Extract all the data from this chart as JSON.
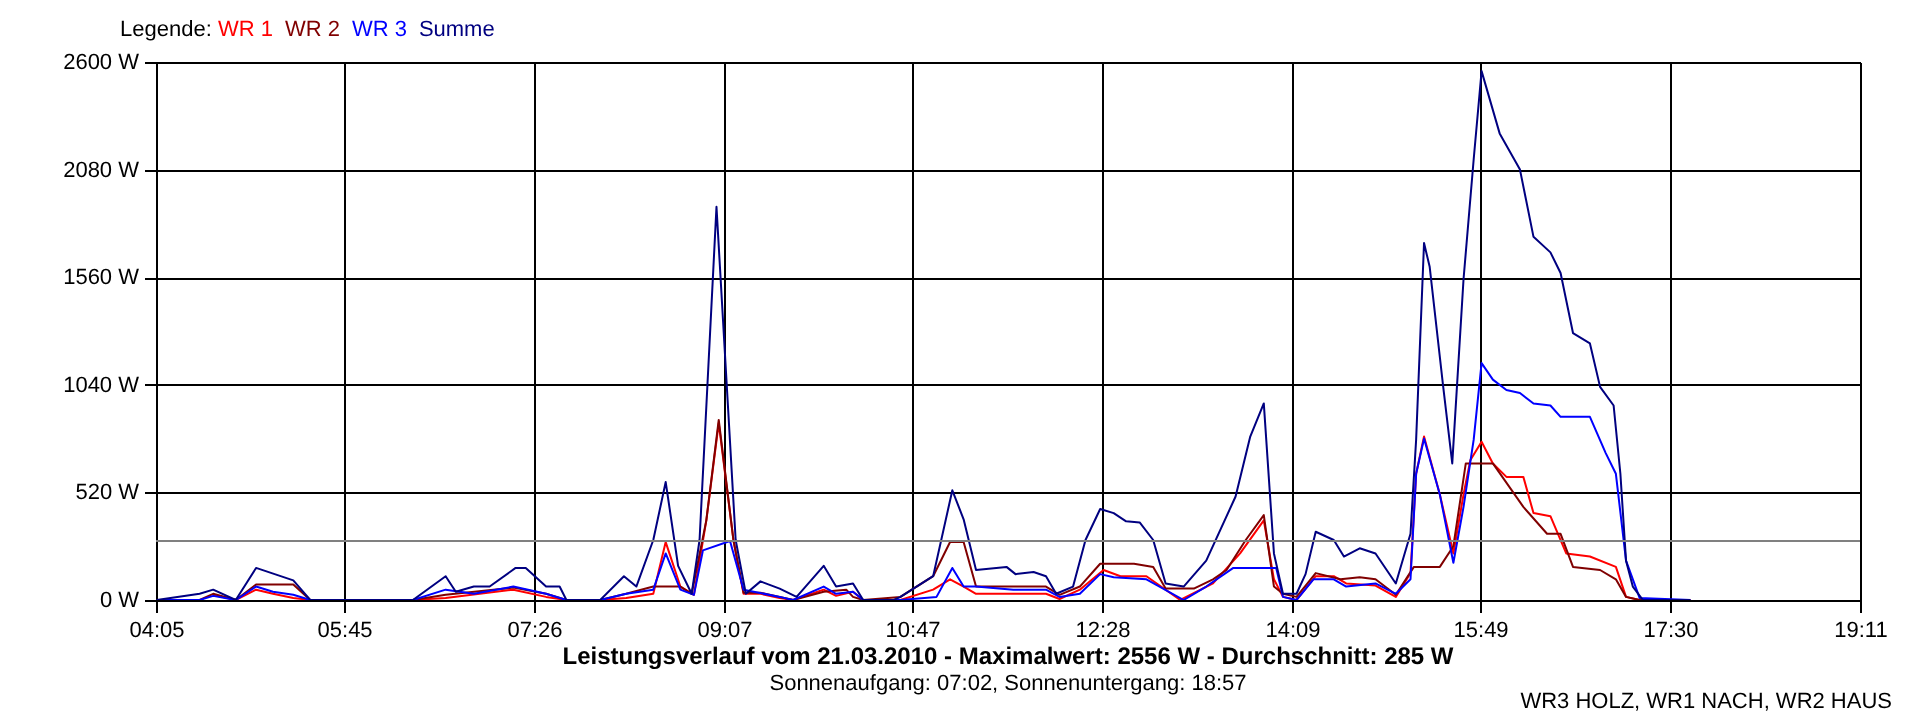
{
  "chart_data": {
    "type": "line",
    "title": "Leistungsverlauf vom 21.03.2010 - Maximalwert: 2556 W - Durchschnitt: 285 W",
    "subtitle": "Sonnenaufgang: 07:02, Sonnenuntergang: 18:57",
    "legend_title": "Legende:",
    "legend": "top left",
    "annotations": [
      "WR3 HOLZ, WR1 NACH, WR2 HAUS"
    ],
    "xlim": [
      4.0833,
      19.1833
    ],
    "xticks": [
      {
        "value": 4.0833,
        "label": "04:05"
      },
      {
        "value": 5.75,
        "label": "05:45"
      },
      {
        "value": 7.4333,
        "label": "07:26"
      },
      {
        "value": 9.1167,
        "label": "09:07"
      },
      {
        "value": 10.7833,
        "label": "10:47"
      },
      {
        "value": 12.4667,
        "label": "12:28"
      },
      {
        "value": 14.15,
        "label": "14:09"
      },
      {
        "value": 15.8167,
        "label": "15:49"
      },
      {
        "value": 17.5,
        "label": "17:30"
      },
      {
        "value": 19.1833,
        "label": "19:11"
      }
    ],
    "ylim": [
      0,
      2600
    ],
    "yticks": [
      {
        "value": 0,
        "label": "0 W"
      },
      {
        "value": 520,
        "label": "520 W"
      },
      {
        "value": 1040,
        "label": "1040 W"
      },
      {
        "value": 1560,
        "label": "1560 W"
      },
      {
        "value": 2080,
        "label": "2080 W"
      },
      {
        "value": 2600,
        "label": "2600 W"
      }
    ],
    "grid": true,
    "ref_lines": [
      {
        "axis": "y",
        "value": 285,
        "color": "#808080"
      }
    ],
    "series": [
      {
        "name": "WR 1",
        "color": "#ff0000",
        "x": [
          4.59,
          4.79,
          4.97,
          5.12,
          5.3,
          5.45,
          6.36,
          6.65,
          7.25,
          7.54,
          7.72,
          8.02,
          8.25,
          8.49,
          8.6,
          8.73,
          8.85,
          8.96,
          9.07,
          9.2,
          9.29,
          9.44,
          9.61,
          9.73,
          10.0,
          10.11,
          10.26,
          10.35,
          10.68,
          10.97,
          11.12,
          11.24,
          11.35,
          11.97,
          12.09,
          12.27,
          12.48,
          12.63,
          12.86,
          13.16,
          13.45,
          13.69,
          13.9,
          13.99,
          14.07,
          14.19,
          14.36,
          14.52,
          14.63,
          14.89,
          15.07,
          15.2,
          15.25,
          15.32,
          15.46,
          15.58,
          15.67,
          15.73,
          15.83,
          15.93,
          16.05,
          16.2,
          16.29,
          16.44,
          16.58,
          16.79,
          17.02,
          17.11,
          17.23,
          17.68
        ],
        "values": [
          25,
          0,
          50,
          30,
          10,
          0,
          0,
          10,
          50,
          15,
          0,
          0,
          10,
          30,
          280,
          65,
          25,
          385,
          855,
          290,
          30,
          30,
          10,
          0,
          50,
          20,
          40,
          0,
          0,
          50,
          100,
          65,
          30,
          30,
          5,
          50,
          145,
          115,
          115,
          0,
          80,
          225,
          385,
          100,
          15,
          0,
          115,
          115,
          80,
          70,
          15,
          130,
          610,
          790,
          510,
          225,
          510,
          675,
          765,
          660,
          595,
          595,
          420,
          405,
          225,
          210,
          160,
          15,
          0,
          0
        ]
      },
      {
        "name": "WR 2",
        "color": "#800000",
        "x": [
          4.09,
          4.47,
          4.59,
          4.79,
          4.97,
          5.3,
          5.45,
          6.36,
          6.65,
          7.25,
          7.54,
          7.72,
          8.02,
          8.25,
          8.49,
          8.73,
          8.83,
          8.96,
          9.07,
          9.2,
          9.29,
          9.44,
          9.73,
          10.0,
          10.2,
          10.26,
          10.35,
          10.68,
          10.97,
          11.12,
          11.24,
          11.35,
          11.62,
          11.97,
          12.09,
          12.27,
          12.45,
          12.75,
          12.92,
          13.03,
          13.28,
          13.45,
          13.57,
          13.74,
          13.9,
          13.99,
          14.07,
          14.19,
          14.36,
          14.58,
          14.75,
          14.89,
          15.07,
          15.23,
          15.46,
          15.58,
          15.69,
          15.93,
          16.2,
          16.41,
          16.53,
          16.64,
          16.88,
          17.02,
          17.11,
          17.23,
          17.68
        ],
        "values": [
          0,
          0,
          30,
          0,
          75,
          75,
          0,
          0,
          25,
          60,
          30,
          0,
          0,
          30,
          65,
          65,
          30,
          385,
          870,
          290,
          35,
          35,
          0,
          40,
          50,
          15,
          0,
          15,
          115,
          280,
          280,
          65,
          65,
          65,
          25,
          65,
          175,
          175,
          160,
          55,
          55,
          100,
          145,
          290,
          410,
          65,
          30,
          15,
          130,
          100,
          110,
          100,
          25,
          160,
          160,
          260,
          660,
          660,
          450,
          320,
          320,
          160,
          145,
          100,
          15,
          0,
          0
        ]
      },
      {
        "name": "WR 3",
        "color": "#0000ff",
        "x": [
          4.09,
          4.47,
          4.59,
          4.79,
          4.97,
          5.12,
          5.3,
          5.45,
          6.36,
          6.65,
          6.9,
          7.25,
          7.54,
          7.72,
          8.02,
          8.25,
          8.49,
          8.6,
          8.73,
          8.85,
          8.93,
          9.17,
          9.29,
          9.38,
          9.61,
          9.73,
          10.0,
          10.11,
          10.26,
          10.35,
          10.68,
          11.0,
          11.14,
          11.24,
          11.35,
          11.68,
          11.97,
          12.09,
          12.27,
          12.45,
          12.57,
          12.86,
          13.19,
          13.39,
          13.63,
          14.01,
          14.07,
          14.19,
          14.34,
          14.52,
          14.63,
          14.89,
          15.07,
          15.2,
          15.25,
          15.32,
          15.46,
          15.58,
          15.67,
          15.76,
          15.83,
          15.93,
          16.05,
          16.17,
          16.29,
          16.44,
          16.53,
          16.79,
          16.93,
          17.02,
          17.11,
          17.23,
          17.68
        ],
        "values": [
          0,
          0,
          20,
          0,
          65,
          40,
          25,
          0,
          0,
          50,
          30,
          65,
          30,
          0,
          0,
          30,
          50,
          225,
          50,
          25,
          240,
          285,
          50,
          40,
          15,
          0,
          65,
          30,
          40,
          0,
          0,
          15,
          155,
          65,
          65,
          50,
          50,
          15,
          30,
          125,
          110,
          100,
          0,
          65,
          155,
          155,
          15,
          0,
          100,
          100,
          65,
          80,
          30,
          100,
          610,
          780,
          510,
          180,
          450,
          775,
          1145,
          1065,
          1015,
          1000,
          950,
          940,
          885,
          885,
          710,
          610,
          190,
          10,
          0
        ]
      },
      {
        "name": "Summe",
        "color": "#000080",
        "x": [
          4.09,
          4.47,
          4.59,
          4.79,
          4.97,
          5.3,
          5.45,
          6.36,
          6.65,
          6.74,
          6.9,
          7.04,
          7.27,
          7.36,
          7.54,
          7.66,
          7.72,
          8.02,
          8.23,
          8.34,
          8.49,
          8.6,
          8.71,
          8.83,
          8.9,
          9.05,
          9.22,
          9.31,
          9.44,
          9.61,
          9.76,
          10.0,
          10.11,
          10.26,
          10.35,
          10.62,
          10.68,
          10.97,
          11.14,
          11.24,
          11.35,
          11.62,
          11.7,
          11.86,
          11.97,
          12.06,
          12.21,
          12.32,
          12.45,
          12.57,
          12.68,
          12.8,
          12.92,
          13.03,
          13.19,
          13.39,
          13.65,
          13.78,
          13.9,
          13.99,
          14.07,
          14.19,
          14.27,
          14.36,
          14.52,
          14.61,
          14.75,
          14.89,
          15.07,
          15.2,
          15.25,
          15.32,
          15.37,
          15.49,
          15.57,
          15.67,
          15.76,
          15.83,
          15.99,
          16.17,
          16.29,
          16.44,
          16.53,
          16.64,
          16.79,
          16.88,
          17.0,
          17.06,
          17.11,
          17.17,
          17.26,
          17.68
        ],
        "values": [
          0,
          30,
          50,
          0,
          155,
          95,
          0,
          0,
          115,
          40,
          65,
          65,
          155,
          155,
          65,
          65,
          0,
          0,
          115,
          65,
          290,
          570,
          165,
          30,
          290,
          1900,
          290,
          30,
          90,
          55,
          15,
          165,
          65,
          80,
          0,
          0,
          15,
          115,
          530,
          390,
          145,
          160,
          125,
          135,
          115,
          30,
          65,
          290,
          440,
          420,
          380,
          375,
          290,
          80,
          65,
          190,
          500,
          790,
          950,
          225,
          30,
          30,
          125,
          330,
          290,
          210,
          250,
          225,
          80,
          320,
          775,
          1725,
          1610,
          1030,
          660,
          1550,
          2130,
          2556,
          2255,
          2080,
          1755,
          1680,
          1580,
          1290,
          1240,
          1030,
          940,
          610,
          190,
          65,
          0,
          0
        ]
      }
    ]
  }
}
